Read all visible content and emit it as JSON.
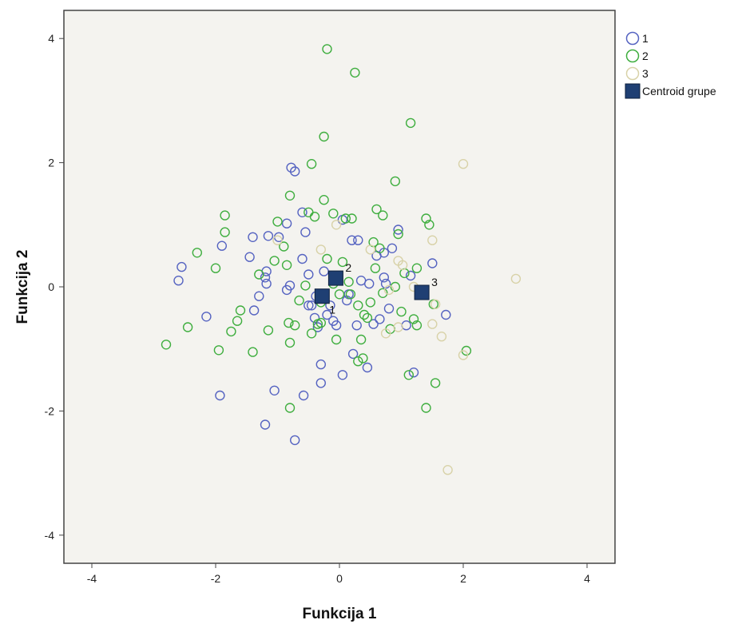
{
  "chart_data": {
    "type": "scatter",
    "title": "",
    "xlabel": "Funkcija 1",
    "ylabel": "Funkcija 2",
    "xlim": [
      -4.5,
      4.5
    ],
    "ylim": [
      -4.4,
      4.5
    ],
    "xticks": [
      -4,
      -2,
      0,
      2,
      4
    ],
    "yticks": [
      -4,
      -2,
      0,
      2,
      4
    ],
    "grid": false,
    "legend_position": "right-top",
    "colors": {
      "1": "#5563c1",
      "2": "#3fae3f",
      "3": "#d8d2a8",
      "centroid": "#1f3f73",
      "plot_bg": "#f4f3ef",
      "frame": "#444444"
    },
    "legend": [
      {
        "key": "1",
        "label": "1",
        "marker": "circle"
      },
      {
        "key": "2",
        "label": "2",
        "marker": "circle"
      },
      {
        "key": "3",
        "label": "3",
        "marker": "circle"
      },
      {
        "key": "centroid",
        "label": "Centroid grupe",
        "marker": "square"
      }
    ],
    "series": [
      {
        "name": "1",
        "points": [
          [
            -2.55,
            0.32
          ],
          [
            -2.6,
            0.1
          ],
          [
            -2.15,
            -0.48
          ],
          [
            -1.9,
            0.66
          ],
          [
            -1.93,
            -1.75
          ],
          [
            -1.4,
            0.8
          ],
          [
            -1.45,
            0.48
          ],
          [
            -1.38,
            -0.38
          ],
          [
            -1.3,
            -0.15
          ],
          [
            -1.18,
            0.25
          ],
          [
            -1.2,
            0.15
          ],
          [
            -1.18,
            0.05
          ],
          [
            -1.15,
            0.82
          ],
          [
            -1.2,
            -2.22
          ],
          [
            -1.05,
            -1.67
          ],
          [
            -0.98,
            0.8
          ],
          [
            -0.85,
            -0.05
          ],
          [
            -0.8,
            0.02
          ],
          [
            -0.85,
            1.02
          ],
          [
            -0.78,
            1.92
          ],
          [
            -0.72,
            1.86
          ],
          [
            -0.72,
            -2.47
          ],
          [
            -0.6,
            1.2
          ],
          [
            -0.58,
            -1.75
          ],
          [
            -0.6,
            0.45
          ],
          [
            -0.5,
            0.2
          ],
          [
            -0.5,
            -0.3
          ],
          [
            -0.45,
            -0.3
          ],
          [
            -0.4,
            -0.5
          ],
          [
            -0.35,
            -0.65
          ],
          [
            -0.3,
            -1.25
          ],
          [
            -0.3,
            -1.55
          ],
          [
            -0.25,
            0.25
          ],
          [
            -0.2,
            -0.45
          ],
          [
            -0.15,
            -0.3
          ],
          [
            -0.1,
            -0.55
          ],
          [
            -0.05,
            -0.62
          ],
          [
            0.05,
            -1.42
          ],
          [
            0.05,
            1.08
          ],
          [
            0.12,
            -0.22
          ],
          [
            0.2,
            0.75
          ],
          [
            0.22,
            -1.08
          ],
          [
            0.28,
            -0.62
          ],
          [
            0.35,
            0.1
          ],
          [
            0.45,
            -1.3
          ],
          [
            0.48,
            0.05
          ],
          [
            0.55,
            -0.6
          ],
          [
            0.6,
            0.5
          ],
          [
            0.65,
            -0.52
          ],
          [
            0.72,
            0.15
          ],
          [
            0.75,
            0.05
          ],
          [
            0.8,
            -0.35
          ],
          [
            0.85,
            0.62
          ],
          [
            1.08,
            -0.62
          ],
          [
            1.15,
            0.18
          ],
          [
            1.2,
            -1.38
          ],
          [
            1.5,
            0.38
          ],
          [
            1.72,
            -0.45
          ],
          [
            -0.55,
            0.88
          ],
          [
            0.15,
            -0.12
          ],
          [
            0.95,
            0.92
          ],
          [
            0.3,
            0.75
          ],
          [
            -0.38,
            -0.15
          ],
          [
            0.72,
            0.55
          ]
        ]
      },
      {
        "name": "2",
        "points": [
          [
            -0.2,
            3.83
          ],
          [
            0.25,
            3.45
          ],
          [
            1.15,
            2.64
          ],
          [
            -0.25,
            2.42
          ],
          [
            -0.45,
            1.98
          ],
          [
            -0.8,
            1.47
          ],
          [
            -0.25,
            1.4
          ],
          [
            0.9,
            1.7
          ],
          [
            -1.85,
            1.15
          ],
          [
            -2.3,
            0.55
          ],
          [
            -1.85,
            0.88
          ],
          [
            -2.45,
            -0.65
          ],
          [
            -2.8,
            -0.93
          ],
          [
            -2.0,
            0.3
          ],
          [
            -1.95,
            -1.02
          ],
          [
            -1.75,
            -0.72
          ],
          [
            -1.65,
            -0.55
          ],
          [
            -1.6,
            -0.38
          ],
          [
            -1.4,
            -1.05
          ],
          [
            -1.15,
            -0.7
          ],
          [
            -1.05,
            0.42
          ],
          [
            -1.0,
            1.05
          ],
          [
            -0.9,
            0.65
          ],
          [
            -0.85,
            0.35
          ],
          [
            -0.82,
            -0.58
          ],
          [
            -0.8,
            -0.9
          ],
          [
            -0.72,
            -0.62
          ],
          [
            -0.55,
            0.02
          ],
          [
            -0.5,
            1.2
          ],
          [
            -0.45,
            -0.75
          ],
          [
            -0.4,
            1.13
          ],
          [
            -0.35,
            -0.6
          ],
          [
            -0.3,
            -0.58
          ],
          [
            -0.2,
            0.45
          ],
          [
            -0.1,
            1.18
          ],
          [
            0.0,
            -0.12
          ],
          [
            0.05,
            0.4
          ],
          [
            0.1,
            1.1
          ],
          [
            0.18,
            -0.12
          ],
          [
            0.2,
            1.1
          ],
          [
            0.3,
            -0.3
          ],
          [
            0.35,
            -0.85
          ],
          [
            0.38,
            -1.15
          ],
          [
            0.4,
            -0.45
          ],
          [
            0.45,
            -0.5
          ],
          [
            0.5,
            -0.25
          ],
          [
            0.55,
            0.72
          ],
          [
            0.6,
            1.25
          ],
          [
            0.65,
            0.62
          ],
          [
            0.7,
            1.15
          ],
          [
            0.82,
            -0.68
          ],
          [
            0.9,
            0.0
          ],
          [
            0.95,
            0.85
          ],
          [
            1.05,
            0.22
          ],
          [
            1.12,
            -1.42
          ],
          [
            1.2,
            -0.52
          ],
          [
            1.25,
            -0.62
          ],
          [
            1.4,
            1.1
          ],
          [
            1.45,
            1.0
          ],
          [
            1.52,
            -0.28
          ],
          [
            1.55,
            -1.55
          ],
          [
            1.4,
            -1.95
          ],
          [
            2.05,
            -1.03
          ],
          [
            -0.8,
            -1.95
          ],
          [
            0.3,
            -1.2
          ],
          [
            -0.1,
            0.05
          ],
          [
            0.58,
            0.3
          ],
          [
            1.0,
            -0.4
          ],
          [
            -0.3,
            -0.25
          ],
          [
            -0.65,
            -0.22
          ],
          [
            -0.05,
            -0.85
          ],
          [
            0.15,
            0.08
          ],
          [
            0.7,
            -0.1
          ],
          [
            1.25,
            0.3
          ],
          [
            -1.3,
            0.2
          ]
        ]
      },
      {
        "name": "3",
        "points": [
          [
            2.0,
            1.98
          ],
          [
            2.85,
            0.13
          ],
          [
            1.5,
            0.75
          ],
          [
            1.02,
            0.35
          ],
          [
            0.95,
            0.42
          ],
          [
            0.8,
            -0.05
          ],
          [
            0.75,
            -0.75
          ],
          [
            0.95,
            -0.65
          ],
          [
            1.5,
            -0.6
          ],
          [
            1.55,
            -0.28
          ],
          [
            1.65,
            -0.8
          ],
          [
            1.75,
            -2.95
          ],
          [
            2.0,
            -1.1
          ],
          [
            -0.05,
            1.0
          ],
          [
            -0.3,
            0.6
          ],
          [
            1.2,
            0.0
          ],
          [
            0.5,
            0.6
          ],
          [
            -1.0,
            0.75
          ]
        ]
      }
    ],
    "centroids": [
      {
        "label": "1",
        "x": -0.28,
        "y": -0.15
      },
      {
        "label": "2",
        "x": -0.06,
        "y": 0.14
      },
      {
        "label": "3",
        "x": 1.33,
        "y": -0.09
      }
    ]
  }
}
